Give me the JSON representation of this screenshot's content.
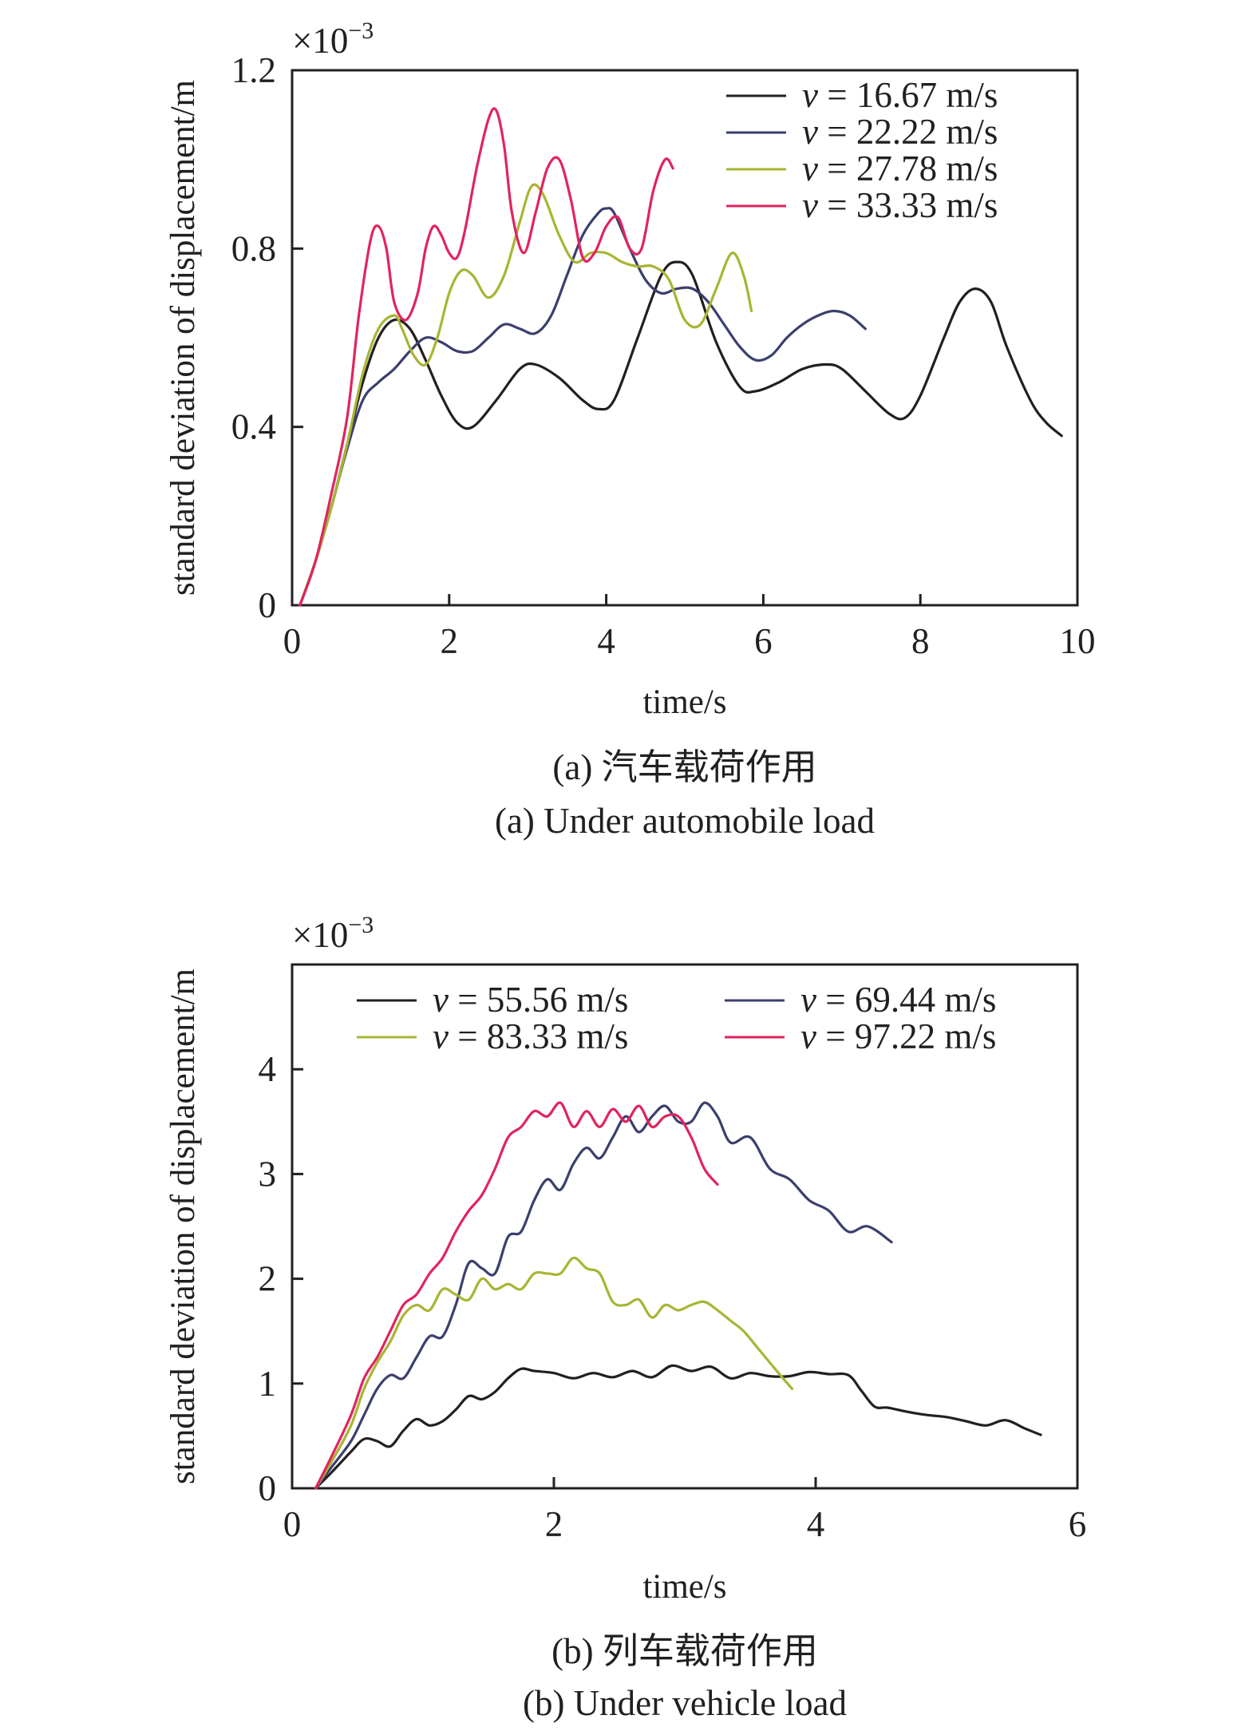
{
  "figure": {
    "panels": [
      {
        "caption_cn": "(a) 汽车载荷作用",
        "caption_en": "(a) Under automobile load",
        "legend_prefix": "v",
        "legend_layout": "single-column",
        "legend_position": "top-right"
      },
      {
        "caption_cn": "(b) 列车载荷作用",
        "caption_en": "(b) Under vehicle load",
        "legend_prefix": "v",
        "legend_layout": "two-column",
        "legend_position": "top"
      }
    ]
  },
  "chart_data": [
    {
      "type": "line",
      "xlabel": "time/s",
      "ylabel": "standard deviation of displacement/m",
      "y_multiplier": "×10",
      "y_exponent": "−3",
      "xlim": [
        0,
        10
      ],
      "ylim": [
        0,
        1.2
      ],
      "x_ticks": [
        "0",
        "2",
        "4",
        "6",
        "8",
        "10"
      ],
      "y_ticks": [
        "0",
        "0.4",
        "0.8",
        "1.2"
      ],
      "grid": false,
      "legend": "top-right",
      "series": [
        {
          "name": "= 16.67 m/s",
          "color": "#231f20",
          "x": [
            0.1,
            0.3,
            0.5,
            0.7,
            0.9,
            1.1,
            1.3,
            1.5,
            1.7,
            1.9,
            2.1,
            2.3,
            2.6,
            2.9,
            3.1,
            3.4,
            3.7,
            3.9,
            4.1,
            4.4,
            4.7,
            4.9,
            5.1,
            5.4,
            5.7,
            5.9,
            6.2,
            6.5,
            6.8,
            7.0,
            7.3,
            7.6,
            7.8,
            8.0,
            8.3,
            8.5,
            8.7,
            8.9,
            9.1,
            9.4,
            9.6,
            9.8
          ],
          "y": [
            0.0,
            0.1,
            0.22,
            0.36,
            0.5,
            0.6,
            0.64,
            0.62,
            0.55,
            0.47,
            0.41,
            0.4,
            0.46,
            0.53,
            0.54,
            0.51,
            0.46,
            0.44,
            0.46,
            0.6,
            0.74,
            0.77,
            0.74,
            0.59,
            0.49,
            0.48,
            0.5,
            0.53,
            0.54,
            0.53,
            0.48,
            0.43,
            0.42,
            0.47,
            0.6,
            0.68,
            0.71,
            0.68,
            0.58,
            0.46,
            0.41,
            0.38
          ]
        },
        {
          "name": "= 22.22 m/s",
          "color": "#3b3f6e",
          "x": [
            0.1,
            0.3,
            0.5,
            0.7,
            0.9,
            1.1,
            1.3,
            1.5,
            1.7,
            1.9,
            2.1,
            2.3,
            2.5,
            2.7,
            2.9,
            3.1,
            3.3,
            3.5,
            3.7,
            3.9,
            4.0,
            4.1,
            4.3,
            4.5,
            4.7,
            4.9,
            5.1,
            5.3,
            5.5,
            5.7,
            5.9,
            6.1,
            6.3,
            6.5,
            6.7,
            6.9,
            7.1,
            7.3
          ],
          "y": [
            0.0,
            0.1,
            0.22,
            0.35,
            0.46,
            0.5,
            0.53,
            0.57,
            0.6,
            0.59,
            0.57,
            0.57,
            0.6,
            0.63,
            0.62,
            0.61,
            0.65,
            0.74,
            0.83,
            0.88,
            0.89,
            0.88,
            0.8,
            0.73,
            0.7,
            0.71,
            0.71,
            0.68,
            0.63,
            0.58,
            0.55,
            0.56,
            0.6,
            0.63,
            0.65,
            0.66,
            0.65,
            0.62
          ]
        },
        {
          "name": "= 27.78 m/s",
          "color": "#a8b533",
          "x": [
            0.1,
            0.3,
            0.5,
            0.7,
            0.9,
            1.1,
            1.3,
            1.4,
            1.55,
            1.7,
            1.85,
            2.0,
            2.15,
            2.3,
            2.5,
            2.7,
            2.9,
            3.05,
            3.2,
            3.4,
            3.6,
            3.8,
            4.0,
            4.2,
            4.4,
            4.6,
            4.8,
            5.0,
            5.2,
            5.4,
            5.6,
            5.75,
            5.85
          ],
          "y": [
            0.0,
            0.1,
            0.22,
            0.36,
            0.52,
            0.62,
            0.65,
            0.62,
            0.56,
            0.54,
            0.6,
            0.7,
            0.75,
            0.74,
            0.69,
            0.74,
            0.86,
            0.94,
            0.92,
            0.83,
            0.77,
            0.79,
            0.79,
            0.77,
            0.76,
            0.76,
            0.73,
            0.64,
            0.63,
            0.71,
            0.79,
            0.74,
            0.66
          ]
        },
        {
          "name": "= 33.33 m/s",
          "color": "#e0245e",
          "x": [
            0.1,
            0.3,
            0.5,
            0.7,
            0.85,
            1.0,
            1.1,
            1.2,
            1.3,
            1.45,
            1.6,
            1.7,
            1.8,
            1.9,
            2.0,
            2.1,
            2.2,
            2.35,
            2.5,
            2.6,
            2.7,
            2.8,
            2.95,
            3.1,
            3.25,
            3.4,
            3.55,
            3.7,
            3.85,
            4.0,
            4.15,
            4.3,
            4.45,
            4.6,
            4.75,
            4.85
          ],
          "y": [
            0.0,
            0.1,
            0.25,
            0.42,
            0.65,
            0.82,
            0.85,
            0.8,
            0.68,
            0.64,
            0.7,
            0.8,
            0.85,
            0.83,
            0.79,
            0.78,
            0.84,
            0.98,
            1.09,
            1.11,
            1.03,
            0.88,
            0.79,
            0.88,
            0.98,
            1.0,
            0.91,
            0.78,
            0.79,
            0.85,
            0.87,
            0.8,
            0.8,
            0.93,
            1.0,
            0.98
          ]
        }
      ]
    },
    {
      "type": "line",
      "xlabel": "time/s",
      "ylabel": "standard deviation of displacement/m",
      "y_multiplier": "×10",
      "y_exponent": "−3",
      "xlim": [
        0,
        6
      ],
      "ylim": [
        0,
        5
      ],
      "x_ticks": [
        "0",
        "2",
        "4",
        "6"
      ],
      "y_ticks": [
        "0",
        "1",
        "2",
        "3",
        "4"
      ],
      "grid": false,
      "legend": "top",
      "series": [
        {
          "name": "= 55.56 m/s",
          "color": "#231f20",
          "x": [
            0.18,
            0.3,
            0.45,
            0.55,
            0.65,
            0.75,
            0.85,
            0.95,
            1.05,
            1.15,
            1.25,
            1.35,
            1.45,
            1.55,
            1.65,
            1.75,
            1.85,
            2.0,
            2.15,
            2.3,
            2.45,
            2.6,
            2.75,
            2.9,
            3.05,
            3.2,
            3.35,
            3.5,
            3.65,
            3.8,
            3.95,
            4.1,
            4.25,
            4.35,
            4.45,
            4.55,
            4.7,
            4.85,
            5.0,
            5.15,
            5.3,
            5.45,
            5.6,
            5.72
          ],
          "y": [
            0.0,
            0.15,
            0.35,
            0.47,
            0.45,
            0.4,
            0.55,
            0.66,
            0.6,
            0.64,
            0.75,
            0.88,
            0.85,
            0.92,
            1.05,
            1.14,
            1.12,
            1.1,
            1.05,
            1.1,
            1.06,
            1.12,
            1.06,
            1.17,
            1.12,
            1.16,
            1.05,
            1.1,
            1.07,
            1.07,
            1.11,
            1.09,
            1.08,
            0.93,
            0.78,
            0.77,
            0.73,
            0.7,
            0.68,
            0.64,
            0.6,
            0.65,
            0.57,
            0.51
          ]
        },
        {
          "name": "= 69.44 m/s",
          "color": "#3b3f6e",
          "x": [
            0.18,
            0.3,
            0.45,
            0.55,
            0.65,
            0.75,
            0.85,
            0.95,
            1.05,
            1.15,
            1.25,
            1.35,
            1.45,
            1.55,
            1.65,
            1.75,
            1.85,
            1.95,
            2.05,
            2.15,
            2.25,
            2.35,
            2.45,
            2.55,
            2.65,
            2.75,
            2.85,
            2.95,
            3.05,
            3.15,
            3.25,
            3.35,
            3.5,
            3.65,
            3.8,
            3.95,
            4.1,
            4.25,
            4.4,
            4.58
          ],
          "y": [
            0.0,
            0.2,
            0.45,
            0.7,
            0.95,
            1.08,
            1.05,
            1.25,
            1.45,
            1.45,
            1.75,
            2.15,
            2.1,
            2.05,
            2.4,
            2.45,
            2.75,
            2.95,
            2.85,
            3.1,
            3.25,
            3.15,
            3.35,
            3.55,
            3.4,
            3.55,
            3.65,
            3.5,
            3.5,
            3.68,
            3.55,
            3.3,
            3.35,
            3.05,
            2.95,
            2.75,
            2.65,
            2.45,
            2.5,
            2.35
          ]
        },
        {
          "name": "= 83.33 m/s",
          "color": "#a8b533",
          "x": [
            0.18,
            0.3,
            0.45,
            0.55,
            0.65,
            0.75,
            0.85,
            0.95,
            1.05,
            1.15,
            1.25,
            1.35,
            1.45,
            1.55,
            1.65,
            1.75,
            1.85,
            1.95,
            2.05,
            2.15,
            2.25,
            2.35,
            2.45,
            2.55,
            2.65,
            2.75,
            2.85,
            2.95,
            3.05,
            3.15,
            3.25,
            3.35,
            3.45,
            3.55,
            3.65,
            3.75,
            3.82
          ],
          "y": [
            0.0,
            0.25,
            0.6,
            0.95,
            1.2,
            1.4,
            1.65,
            1.75,
            1.7,
            1.9,
            1.85,
            1.8,
            2.0,
            1.9,
            1.95,
            1.9,
            2.05,
            2.05,
            2.05,
            2.2,
            2.1,
            2.05,
            1.78,
            1.75,
            1.8,
            1.63,
            1.75,
            1.7,
            1.75,
            1.78,
            1.7,
            1.6,
            1.5,
            1.35,
            1.2,
            1.05,
            0.95
          ]
        },
        {
          "name": "= 97.22 m/s",
          "color": "#e0245e",
          "x": [
            0.18,
            0.3,
            0.45,
            0.55,
            0.65,
            0.75,
            0.85,
            0.95,
            1.05,
            1.15,
            1.25,
            1.35,
            1.45,
            1.55,
            1.65,
            1.75,
            1.85,
            1.95,
            2.05,
            2.15,
            2.25,
            2.35,
            2.45,
            2.55,
            2.65,
            2.75,
            2.85,
            2.95,
            3.05,
            3.15,
            3.25
          ],
          "y": [
            0.0,
            0.3,
            0.7,
            1.05,
            1.25,
            1.5,
            1.75,
            1.85,
            2.05,
            2.2,
            2.45,
            2.65,
            2.8,
            3.05,
            3.35,
            3.45,
            3.6,
            3.55,
            3.68,
            3.45,
            3.6,
            3.45,
            3.62,
            3.5,
            3.65,
            3.45,
            3.55,
            3.55,
            3.35,
            3.05,
            2.9
          ]
        }
      ]
    }
  ]
}
